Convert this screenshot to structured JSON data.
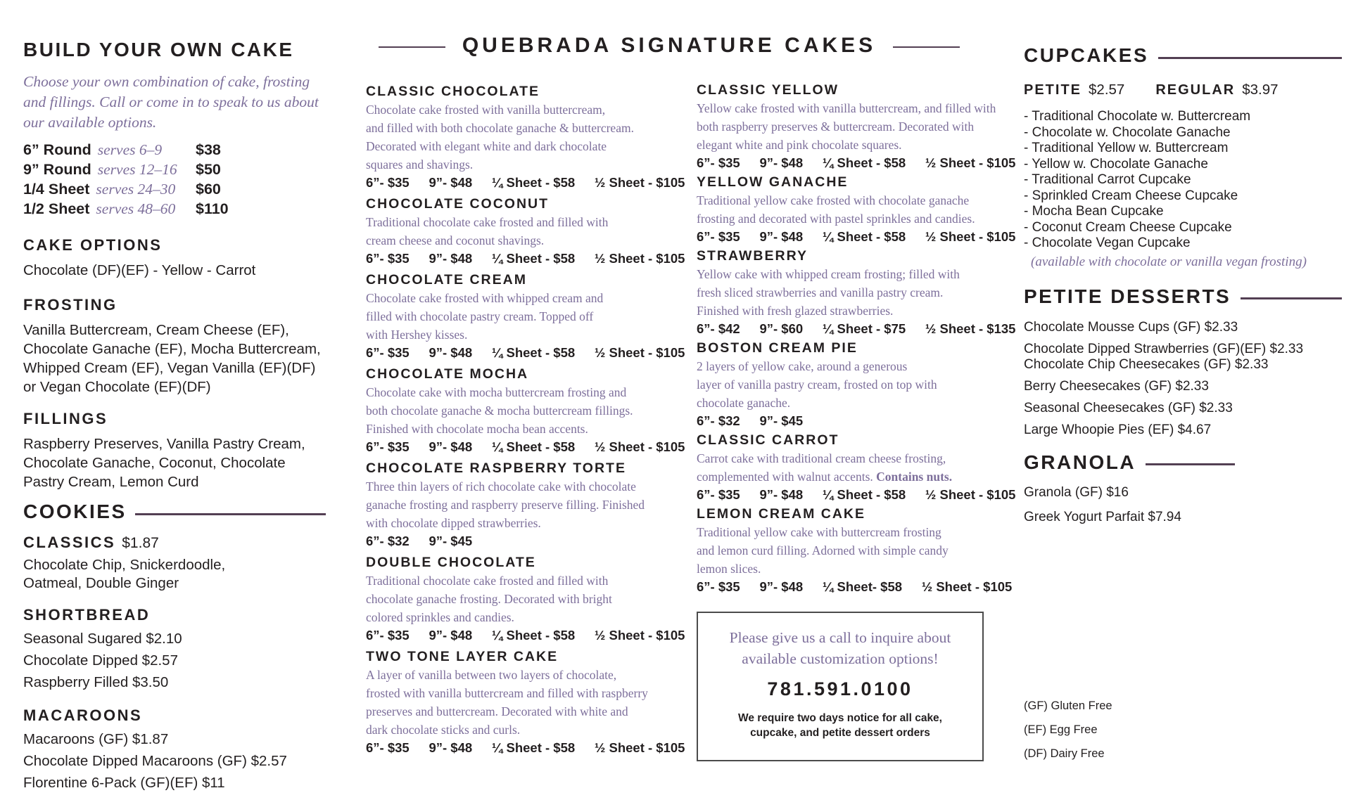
{
  "colors": {
    "accent_purple": "#7d6f9b",
    "rule_purple": "#533f53",
    "text": "#231f20"
  },
  "left": {
    "title": "BUILD YOUR OWN CAKE",
    "intro_lines": [
      "Choose your own combination of cake, frosting",
      "and fillings. Call or come in to speak to us about",
      "our available options."
    ],
    "sizes": [
      {
        "label": "6” Round",
        "serves": "serves 6–9",
        "price": "$38"
      },
      {
        "label": "9” Round",
        "serves": "serves 12–16",
        "price": "$50"
      },
      {
        "label": "1/4 Sheet",
        "serves": "serves 24–30",
        "price": "$60"
      },
      {
        "label": "1/2 Sheet",
        "serves": "serves 48–60",
        "price": "$110"
      }
    ],
    "cake_options": {
      "title": "CAKE OPTIONS",
      "lines": [
        "Chocolate (DF)(EF) - Yellow - Carrot"
      ]
    },
    "frosting": {
      "title": "FROSTING",
      "lines": [
        "Vanilla Buttercream, Cream Cheese (EF),",
        "Chocolate Ganache (EF), Mocha Buttercream,",
        "Whipped Cream (EF), Vegan Vanilla (EF)(DF)",
        "or Vegan Chocolate (EF)(DF)"
      ]
    },
    "fillings": {
      "title": "FILLINGS",
      "lines": [
        "Raspberry Preserves, Vanilla Pastry Cream,",
        "Chocolate Ganache, Coconut, Chocolate",
        "Pastry Cream, Lemon Curd"
      ]
    },
    "cookies": {
      "title": "COOKIES",
      "classics": {
        "title": "CLASSICS",
        "price": "$1.87",
        "lines": [
          "Chocolate Chip, Snickerdoodle,",
          "Oatmeal, Double Ginger"
        ]
      },
      "shortbread": {
        "title": "SHORTBREAD",
        "items": [
          "Seasonal Sugared $2.10",
          "Chocolate Dipped $2.57",
          "Raspberry Filled $3.50"
        ]
      },
      "macaroons": {
        "title": "MACAROONS",
        "items": [
          "Macaroons (GF) $1.87",
          "Chocolate Dipped Macaroons (GF) $2.57",
          "Florentine 6-Pack (GF)(EF) $11"
        ]
      }
    }
  },
  "signature": {
    "title": "QUEBRADA SIGNATURE CAKES",
    "col1": [
      {
        "name": "CLASSIC CHOCOLATE",
        "desc_lines": [
          "Chocolate cake frosted with vanilla buttercream,",
          "and filled with both chocolate ganache & buttercream.",
          "Decorated with elegant white and dark chocolate",
          "squares and shavings."
        ],
        "prices": "6”- $35   9”- $48   ¼ Sheet - $58   ½ Sheet - $105"
      },
      {
        "name": "CHOCOLATE COCONUT",
        "desc_lines": [
          "Traditional chocolate cake frosted and filled with",
          "cream cheese and coconut shavings."
        ],
        "prices": "6”- $35   9”- $48   ¼ Sheet - $58   ½ Sheet - $105"
      },
      {
        "name": "CHOCOLATE CREAM",
        "desc_lines": [
          "Chocolate cake frosted with whipped cream and",
          "filled with chocolate pastry cream. Topped off",
          "with Hershey kisses."
        ],
        "prices": "6”- $35   9”- $48   ¼ Sheet - $58   ½ Sheet - $105"
      },
      {
        "name": "CHOCOLATE MOCHA",
        "desc_lines": [
          "Chocolate cake with mocha buttercream frosting and",
          "both chocolate ganache & mocha buttercream fillings.",
          "Finished with chocolate mocha bean accents."
        ],
        "prices": "6”- $35   9”- $48   ¼ Sheet - $58   ½ Sheet - $105"
      },
      {
        "name": "CHOCOLATE RASPBERRY TORTE",
        "desc_lines": [
          "Three thin layers of rich chocolate cake with chocolate",
          "ganache frosting and raspberry preserve filling. Finished",
          "with chocolate dipped strawberries."
        ],
        "prices": "6”- $32   9”- $45"
      },
      {
        "name": "DOUBLE CHOCOLATE",
        "desc_lines": [
          "Traditional chocolate cake frosted and filled with",
          "chocolate ganache frosting. Decorated with bright",
          "colored sprinkles and candies."
        ],
        "prices": "6”- $35   9”- $48   ¼ Sheet - $58   ½ Sheet - $105"
      },
      {
        "name": "TWO TONE LAYER CAKE",
        "desc_lines": [
          "A layer of vanilla between two layers of chocolate,",
          "frosted with vanilla buttercream and filled with raspberry",
          "preserves and buttercream. Decorated with white and",
          "dark chocolate sticks and curls."
        ],
        "prices": "6”- $35   9”- $48   ¼ Sheet - $58   ½ Sheet - $105"
      }
    ],
    "col2": [
      {
        "name": "CLASSIC YELLOW",
        "desc_lines": [
          "Yellow cake frosted with vanilla buttercream, and filled with",
          "both raspberry preserves & buttercream. Decorated with",
          "elegant white and pink chocolate squares."
        ],
        "prices": "6”- $35   9”- $48   ¼ Sheet - $58   ½ Sheet - $105"
      },
      {
        "name": "YELLOW GANACHE",
        "desc_lines": [
          "Traditional yellow cake frosted with chocolate ganache",
          "frosting and decorated with pastel sprinkles and candies."
        ],
        "prices": "6”- $35   9”- $48   ¼ Sheet - $58   ½ Sheet - $105"
      },
      {
        "name": "STRAWBERRY",
        "desc_lines": [
          "Yellow cake with whipped cream frosting; filled with",
          "fresh sliced strawberries and vanilla pastry cream.",
          "Finished with fresh glazed strawberries."
        ],
        "prices": "6”- $42   9”- $60   ¼ Sheet - $75   ½ Sheet - $135"
      },
      {
        "name": "BOSTON CREAM PIE",
        "desc_lines": [
          "2 layers of yellow cake, around a generous",
          "layer of vanilla pastry cream, frosted on top with",
          "chocolate ganache."
        ],
        "prices": "6”- $32   9”- $45"
      },
      {
        "name": "CLASSIC CARROT",
        "desc_lines": [
          "Carrot cake with traditional cream cheese frosting,",
          "complemented with walnut accents. "
        ],
        "desc_bold": "Contains nuts.",
        "prices": "6”- $35   9”- $48   ¼ Sheet - $58   ½ Sheet - $105"
      },
      {
        "name": "LEMON CREAM CAKE",
        "desc_lines": [
          "Traditional yellow cake with buttercream frosting",
          "and lemon curd filling. Adorned with simple candy",
          "lemon slices."
        ],
        "prices": "6”- $35   9”- $48   ¼ Sheet- $58   ½ Sheet - $105"
      }
    ],
    "notice": {
      "line1": "Please give us a call to inquire about",
      "line2": "available customization options!",
      "phone": "781.591.0100",
      "note_line1": "We require two days notice for all cake,",
      "note_line2": "cupcake, and petite dessert orders"
    }
  },
  "right": {
    "cupcakes": {
      "title": "CUPCAKES",
      "petite_label": "PETITE",
      "petite_price": "$2.57",
      "regular_label": "REGULAR",
      "regular_price": "$3.97",
      "items": [
        "- Traditional Chocolate w. Buttercream",
        "- Chocolate w. Chocolate Ganache",
        "- Traditional Yellow w. Buttercream",
        "- Yellow w. Chocolate Ganache",
        "- Traditional Carrot Cupcake",
        "- Sprinkled Cream Cheese Cupcake",
        "- Mocha Bean Cupcake",
        "- Coconut Cream Cheese Cupcake",
        "- Chocolate Vegan Cupcake"
      ],
      "note": "(available with chocolate or vanilla vegan frosting)"
    },
    "petite_desserts": {
      "title": "PETITE DESSERTS",
      "items": [
        "Chocolate Mousse Cups (GF) $2.33",
        "Chocolate Dipped Strawberries (GF)(EF) $2.33",
        "Chocolate Chip Cheesecakes (GF) $2.33",
        "Berry Cheesecakes (GF) $2.33",
        "Seasonal Cheesecakes (GF) $2.33",
        "Large Whoopie Pies (EF) $4.67"
      ]
    },
    "granola": {
      "title": "GRANOLA",
      "items": [
        "Granola (GF) $16",
        "Greek Yogurt Parfait $7.94"
      ]
    },
    "legend": [
      "(GF) Gluten Free",
      "(EF) Egg Free",
      "(DF) Dairy Free"
    ]
  }
}
